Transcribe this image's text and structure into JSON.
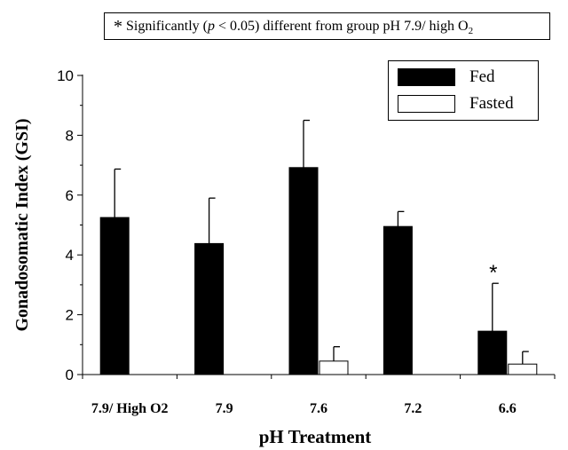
{
  "note": {
    "prefix": "Significantly (",
    "p_symbol": "p",
    "threshold": " < 0.05) different from group pH 7.9/ high O",
    "subscript": "2",
    "marker": "*"
  },
  "chart_data": {
    "type": "bar",
    "xlabel": "pH Treatment",
    "ylabel": "Gonadosomatic Index (GSI)",
    "ylim": [
      0,
      10
    ],
    "yticks": [
      0,
      2,
      4,
      6,
      8,
      10
    ],
    "grid": false,
    "legend_position": "top-right",
    "categories": [
      "7.9/ High O2",
      "7.9",
      "7.6",
      "7.2",
      "6.6"
    ],
    "series": [
      {
        "name": "Fed",
        "color": "#000000",
        "values": [
          5.25,
          4.38,
          6.92,
          4.95,
          1.45
        ],
        "error": [
          1.62,
          1.52,
          1.58,
          0.5,
          1.6
        ]
      },
      {
        "name": "Fasted",
        "color": "#ffffff",
        "values": [
          null,
          null,
          0.45,
          null,
          0.35
        ],
        "error": [
          null,
          null,
          0.48,
          null,
          0.42
        ]
      }
    ],
    "significance": [
      {
        "category_index": 4,
        "series_index": 0,
        "marker": "*"
      }
    ]
  }
}
